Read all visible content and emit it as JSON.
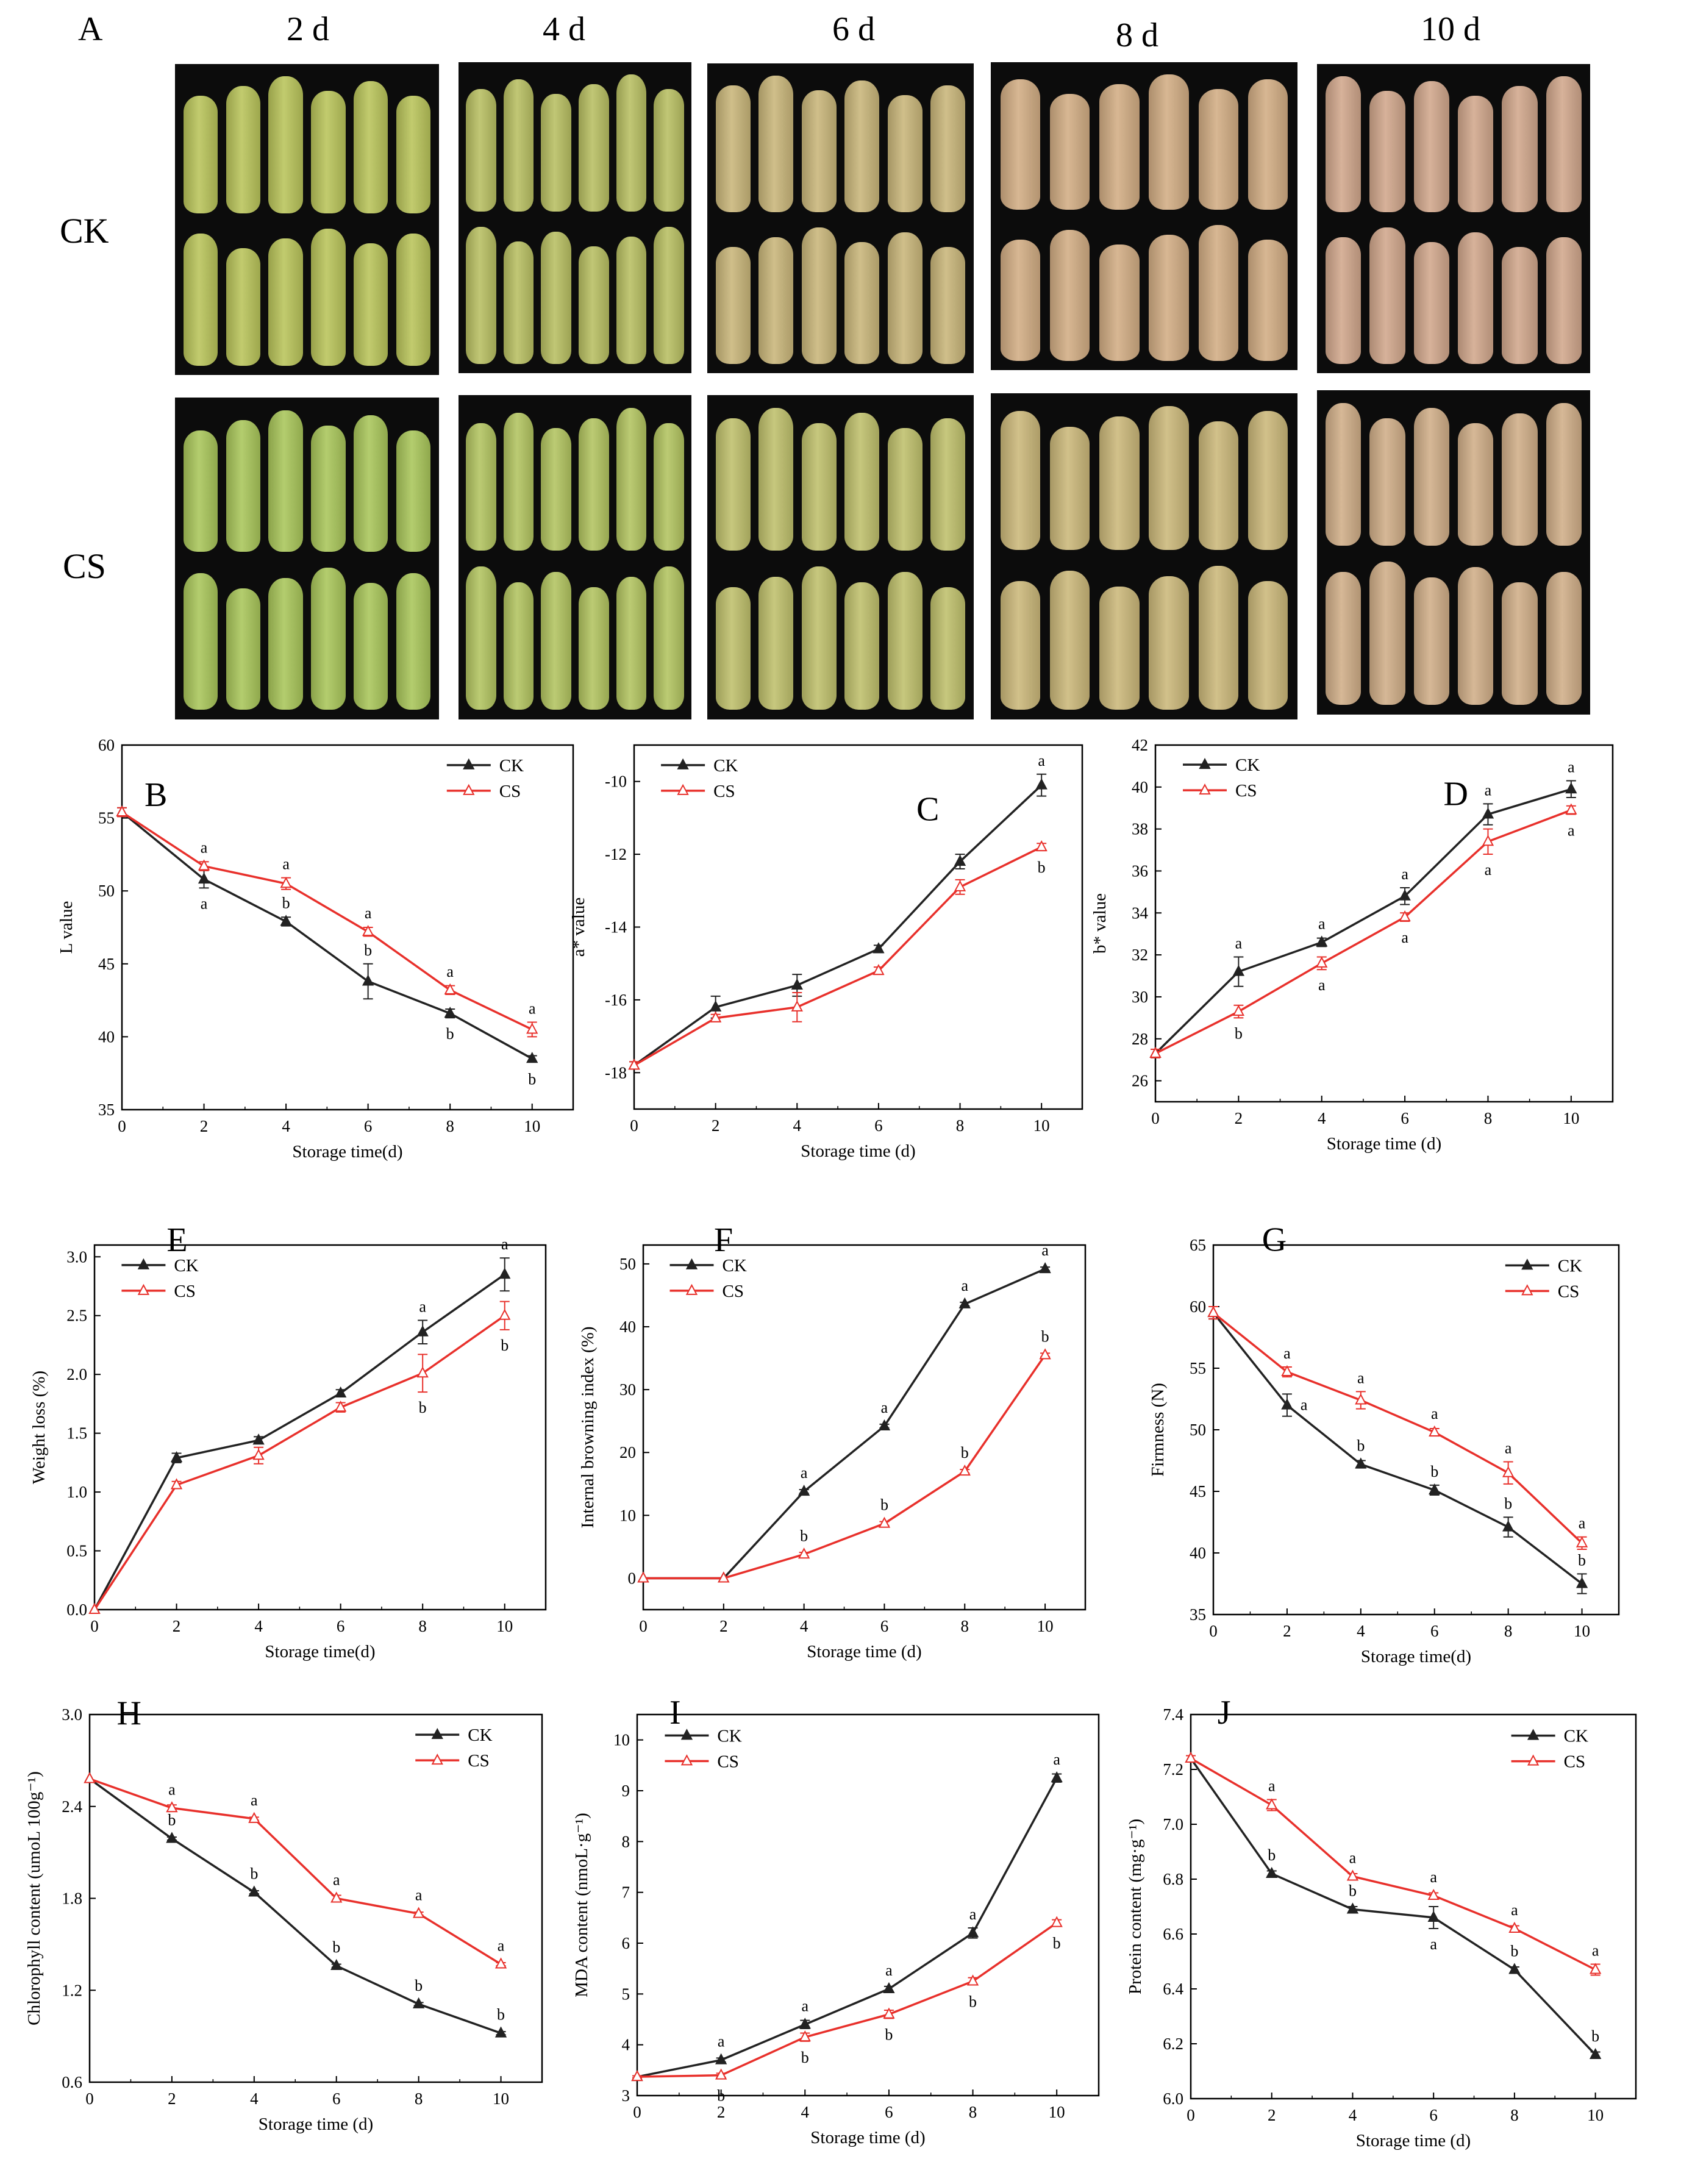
{
  "figure": {
    "panel_a_letter": "A",
    "day_labels": [
      "2 d",
      "4 d",
      "6 d",
      "8 d",
      "10 d"
    ],
    "row_labels": [
      "CK",
      "CS"
    ]
  },
  "photos": {
    "pod_colors": {
      "CK": [
        "#b9c45a",
        "#b8bf62",
        "#c9b67a",
        "#d2ad84",
        "#d1a78c"
      ],
      "CS": [
        "#a9c65a",
        "#b2c460",
        "#bfc06c",
        "#cbb87a",
        "#d0ae88"
      ]
    },
    "background": "#0c0c0c"
  },
  "colors": {
    "CK": "#222222",
    "CS": "#e8302b"
  },
  "chart_data": [
    {
      "id": "B",
      "type": "line",
      "title": "B",
      "xlabel": "Storage time(d)",
      "ylabel": "L value",
      "xlim": [
        0,
        11
      ],
      "ylim": [
        35,
        60
      ],
      "xticks": [
        0,
        2,
        4,
        6,
        8,
        10
      ],
      "yticks": [
        35,
        40,
        45,
        50,
        55,
        60
      ],
      "legend": "top-right",
      "x": [
        0,
        2,
        4,
        6,
        8,
        10
      ],
      "series": [
        {
          "name": "CK",
          "values": [
            55.4,
            50.8,
            47.9,
            43.8,
            41.6,
            38.5
          ],
          "errors": [
            0.3,
            0.6,
            0.3,
            1.2,
            0.3,
            0.2
          ],
          "labels": [
            "",
            "a",
            "b",
            "b",
            "b",
            "b"
          ],
          "label_pos": [
            "",
            "below",
            "above",
            "above",
            "below",
            "below"
          ]
        },
        {
          "name": "CS",
          "values": [
            55.4,
            51.7,
            50.5,
            47.2,
            43.2,
            40.5
          ],
          "errors": [
            0.3,
            0.3,
            0.4,
            0.3,
            0.3,
            0.5
          ],
          "labels": [
            "",
            "a",
            "a",
            "a",
            "a",
            "a"
          ],
          "label_pos": [
            "",
            "above",
            "above",
            "above",
            "above",
            "above"
          ]
        }
      ]
    },
    {
      "id": "C",
      "type": "line",
      "title": "C",
      "xlabel": "Storage time (d)",
      "ylabel": "a* value",
      "xlim": [
        0,
        11
      ],
      "ylim": [
        -19,
        -9
      ],
      "xticks": [
        0,
        2,
        4,
        6,
        8,
        10
      ],
      "yticks": [
        -18,
        -16,
        -14,
        -12,
        -10
      ],
      "legend": "top-left",
      "x": [
        0,
        2,
        4,
        6,
        8,
        10
      ],
      "series": [
        {
          "name": "CK",
          "values": [
            -17.8,
            -16.2,
            -15.6,
            -14.6,
            -12.2,
            -10.1
          ],
          "errors": [
            0.1,
            0.3,
            0.3,
            0.1,
            0.2,
            0.3
          ],
          "labels": [
            "",
            "",
            "",
            "",
            "",
            "a"
          ],
          "label_pos": [
            "",
            "",
            "",
            "",
            "",
            "above"
          ]
        },
        {
          "name": "CS",
          "values": [
            -17.8,
            -16.5,
            -16.2,
            -15.2,
            -12.9,
            -11.8
          ],
          "errors": [
            0.1,
            0.1,
            0.4,
            0.1,
            0.2,
            0.1
          ],
          "labels": [
            "",
            "",
            "",
            "",
            "",
            "b"
          ],
          "label_pos": [
            "",
            "",
            "",
            "",
            "",
            "below"
          ]
        }
      ]
    },
    {
      "id": "D",
      "type": "line",
      "title": "D",
      "xlabel": "Storage time (d)",
      "ylabel": "b* value",
      "xlim": [
        0,
        11
      ],
      "ylim": [
        25,
        42
      ],
      "xticks": [
        0,
        2,
        4,
        6,
        8,
        10
      ],
      "yticks": [
        26,
        28,
        30,
        32,
        34,
        36,
        38,
        40,
        42
      ],
      "legend": "top-left",
      "x": [
        0,
        2,
        4,
        6,
        8,
        10
      ],
      "series": [
        {
          "name": "CK",
          "values": [
            27.3,
            31.2,
            32.6,
            34.8,
            38.7,
            39.9
          ],
          "errors": [
            0.2,
            0.7,
            0.2,
            0.4,
            0.5,
            0.4
          ],
          "labels": [
            "",
            "a",
            "a",
            "a",
            "a",
            "a"
          ],
          "label_pos": [
            "",
            "above",
            "above",
            "above",
            "above",
            "above"
          ]
        },
        {
          "name": "CS",
          "values": [
            27.3,
            29.3,
            31.6,
            33.8,
            37.4,
            38.9
          ],
          "errors": [
            0.2,
            0.3,
            0.3,
            0.2,
            0.6,
            0.2
          ],
          "labels": [
            "",
            "b",
            "a",
            "a",
            "a",
            "a"
          ],
          "label_pos": [
            "",
            "below",
            "below",
            "below",
            "below",
            "below"
          ]
        }
      ]
    },
    {
      "id": "E",
      "type": "line",
      "title": "E",
      "xlabel": "Storage time(d)",
      "ylabel": "Weight loss (%)",
      "xlim": [
        0,
        11
      ],
      "ylim": [
        0,
        3.1
      ],
      "xticks": [
        0,
        2,
        4,
        6,
        8,
        10
      ],
      "yticks": [
        0.0,
        0.5,
        1.0,
        1.5,
        2.0,
        2.5,
        3.0
      ],
      "ytick_decimals": 1,
      "legend": "top-left",
      "x": [
        0,
        2,
        4,
        6,
        8,
        10
      ],
      "series": [
        {
          "name": "CK",
          "values": [
            0,
            1.29,
            1.44,
            1.84,
            2.36,
            2.85
          ],
          "errors": [
            0,
            0.04,
            0.03,
            0.03,
            0.1,
            0.14
          ],
          "labels": [
            "",
            "",
            "",
            "",
            "a",
            "a"
          ],
          "label_pos": [
            "",
            "",
            "",
            "",
            "above",
            "above"
          ]
        },
        {
          "name": "CS",
          "values": [
            0,
            1.06,
            1.31,
            1.72,
            2.01,
            2.5
          ],
          "errors": [
            0,
            0.03,
            0.07,
            0.04,
            0.16,
            0.12
          ],
          "labels": [
            "",
            "",
            "",
            "",
            "b",
            "b"
          ],
          "label_pos": [
            "",
            "",
            "",
            "",
            "below",
            "below"
          ]
        }
      ]
    },
    {
      "id": "F",
      "type": "line",
      "title": "F",
      "xlabel": "Storage time (d)",
      "ylabel": "Internal browning index (%)",
      "xlim": [
        0,
        11
      ],
      "ylim": [
        -5,
        53
      ],
      "xticks": [
        0,
        2,
        4,
        6,
        8,
        10
      ],
      "yticks": [
        0,
        10,
        20,
        30,
        40,
        50
      ],
      "legend": "top-left",
      "x": [
        0,
        2,
        4,
        6,
        8,
        10
      ],
      "series": [
        {
          "name": "CK",
          "values": [
            0,
            0,
            13.8,
            24.2,
            43.6,
            49.2
          ],
          "errors": [
            0,
            0,
            0.3,
            0.3,
            0.3,
            0.3
          ],
          "labels": [
            "",
            "",
            "a",
            "a",
            "a",
            "a"
          ],
          "label_pos": [
            "",
            "",
            "above",
            "above",
            "above",
            "above"
          ]
        },
        {
          "name": "CS",
          "values": [
            0,
            0,
            3.8,
            8.7,
            17.0,
            35.5
          ],
          "errors": [
            0,
            0,
            0.3,
            0.3,
            0.3,
            0.3
          ],
          "labels": [
            "",
            "",
            "b",
            "b",
            "b",
            "b"
          ],
          "label_pos": [
            "",
            "",
            "above",
            "above",
            "above",
            "above"
          ]
        }
      ]
    },
    {
      "id": "G",
      "type": "line",
      "title": "G",
      "xlabel": "Storage time(d)",
      "ylabel": "Firmness (N)",
      "xlim": [
        0,
        11
      ],
      "ylim": [
        35,
        65
      ],
      "xticks": [
        0,
        2,
        4,
        6,
        8,
        10
      ],
      "yticks": [
        35,
        40,
        45,
        50,
        55,
        60,
        65
      ],
      "legend": "top-right",
      "x": [
        0,
        2,
        4,
        6,
        8,
        10
      ],
      "series": [
        {
          "name": "CK",
          "values": [
            59.5,
            52.0,
            47.2,
            45.1,
            42.1,
            37.5
          ],
          "errors": [
            0.5,
            0.9,
            0.3,
            0.4,
            0.8,
            0.8
          ],
          "labels": [
            "",
            "a",
            "b",
            "b",
            "b",
            "b"
          ],
          "label_pos": [
            "",
            "right",
            "above",
            "above",
            "above",
            "above"
          ]
        },
        {
          "name": "CS",
          "values": [
            59.5,
            54.7,
            52.4,
            49.8,
            46.5,
            40.8
          ],
          "errors": [
            0.5,
            0.4,
            0.7,
            0.3,
            0.9,
            0.5
          ],
          "labels": [
            "",
            "a",
            "a",
            "a",
            "a",
            "a"
          ],
          "label_pos": [
            "",
            "above",
            "above",
            "above",
            "above",
            "above"
          ]
        }
      ]
    },
    {
      "id": "H",
      "type": "line",
      "title": "H",
      "xlabel": "Storage time (d)",
      "ylabel": "Chlorophyll content (umoL 100g⁻¹)",
      "xlim": [
        0,
        11
      ],
      "ylim": [
        0.6,
        3.0
      ],
      "xticks": [
        0,
        2,
        4,
        6,
        8,
        10
      ],
      "yticks": [
        0.6,
        1.2,
        1.8,
        2.4,
        3.0
      ],
      "ytick_decimals": 1,
      "legend": "top-right",
      "x": [
        0,
        2,
        4,
        6,
        8,
        10
      ],
      "series": [
        {
          "name": "CK",
          "values": [
            2.58,
            2.19,
            1.84,
            1.36,
            1.11,
            0.92
          ],
          "errors": [
            0,
            0.01,
            0.01,
            0.01,
            0.01,
            0.01
          ],
          "labels": [
            "",
            "b",
            "b",
            "b",
            "b",
            "b"
          ],
          "label_pos": [
            "",
            "above",
            "above",
            "above",
            "above",
            "above"
          ]
        },
        {
          "name": "CS",
          "values": [
            2.58,
            2.39,
            2.32,
            1.8,
            1.7,
            1.37
          ],
          "errors": [
            0,
            0.02,
            0.01,
            0.02,
            0.01,
            0.01
          ],
          "labels": [
            "",
            "a",
            "a",
            "a",
            "a",
            "a"
          ],
          "label_pos": [
            "",
            "above",
            "above",
            "above",
            "above",
            "above"
          ]
        }
      ]
    },
    {
      "id": "I",
      "type": "line",
      "title": "I",
      "xlabel": "Storage time (d)",
      "ylabel": "MDA content (nmoL·g⁻¹)",
      "xlim": [
        0,
        11
      ],
      "ylim": [
        3,
        10.5
      ],
      "xticks": [
        0,
        2,
        4,
        6,
        8,
        10
      ],
      "yticks": [
        3,
        4,
        5,
        6,
        7,
        8,
        9,
        10
      ],
      "legend": "top-left",
      "x": [
        0,
        2,
        4,
        6,
        8,
        10
      ],
      "series": [
        {
          "name": "CK",
          "values": [
            3.37,
            3.7,
            4.4,
            5.1,
            6.2,
            9.25
          ],
          "errors": [
            0.02,
            0.04,
            0.08,
            0.05,
            0.1,
            0.08
          ],
          "labels": [
            "",
            "a",
            "a",
            "a",
            "a",
            "a"
          ],
          "label_pos": [
            "",
            "above",
            "above",
            "above",
            "above",
            "above"
          ]
        },
        {
          "name": "CS",
          "values": [
            3.37,
            3.4,
            4.15,
            4.6,
            5.25,
            6.4
          ],
          "errors": [
            0.02,
            0.04,
            0.08,
            0.08,
            0.07,
            0.06
          ],
          "labels": [
            "",
            "b",
            "b",
            "b",
            "b",
            "b"
          ],
          "label_pos": [
            "",
            "below",
            "below",
            "below",
            "below",
            "below"
          ]
        }
      ]
    },
    {
      "id": "J",
      "type": "line",
      "title": "J",
      "xlabel": "Storage time (d)",
      "ylabel": "Protein content (mg·g⁻¹)",
      "xlim": [
        0,
        11
      ],
      "ylim": [
        6.0,
        7.4
      ],
      "xticks": [
        0,
        2,
        4,
        6,
        8,
        10
      ],
      "yticks": [
        6.0,
        6.2,
        6.4,
        6.6,
        6.8,
        7.0,
        7.2,
        7.4
      ],
      "ytick_decimals": 1,
      "legend": "top-right",
      "x": [
        0,
        2,
        4,
        6,
        8,
        10
      ],
      "series": [
        {
          "name": "CK",
          "values": [
            7.24,
            6.82,
            6.69,
            6.66,
            6.47,
            6.16
          ],
          "errors": [
            0.01,
            0.01,
            0.01,
            0.04,
            0.01,
            0.01
          ],
          "labels": [
            "",
            "b",
            "b",
            "a",
            "b",
            "b"
          ],
          "label_pos": [
            "",
            "above",
            "above",
            "below",
            "above",
            "above"
          ]
        },
        {
          "name": "CS",
          "values": [
            7.24,
            7.07,
            6.81,
            6.74,
            6.62,
            6.47
          ],
          "errors": [
            0.01,
            0.02,
            0.01,
            0.01,
            0.01,
            0.02
          ],
          "labels": [
            "",
            "a",
            "a",
            "a",
            "a",
            "a"
          ],
          "label_pos": [
            "",
            "above",
            "above",
            "above",
            "above",
            "above"
          ]
        }
      ]
    }
  ]
}
